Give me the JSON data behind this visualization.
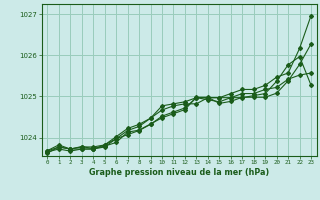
{
  "title": "Graphe pression niveau de la mer (hPa)",
  "background_color": "#cceae8",
  "grid_color": "#99ccbb",
  "line_color": "#1a5c1a",
  "ylim": [
    1023.55,
    1027.25
  ],
  "xlim": [
    -0.5,
    23.5
  ],
  "yticks": [
    1024,
    1025,
    1026,
    1027
  ],
  "xticks": [
    0,
    1,
    2,
    3,
    4,
    5,
    6,
    7,
    8,
    9,
    10,
    11,
    12,
    13,
    14,
    15,
    16,
    17,
    18,
    19,
    20,
    21,
    22,
    23
  ],
  "series": [
    [
      1023.68,
      1023.82,
      1023.72,
      1023.78,
      1023.73,
      1023.79,
      1023.88,
      1024.13,
      1024.18,
      1024.33,
      1024.48,
      1024.58,
      1024.68,
      1024.98,
      1024.98,
      1024.83,
      1024.88,
      1024.98,
      1024.98,
      1024.98,
      1025.08,
      1025.38,
      1025.78,
      1026.28
    ],
    [
      1023.65,
      1023.72,
      1023.67,
      1023.72,
      1023.72,
      1023.77,
      1023.97,
      1024.17,
      1024.27,
      1024.47,
      1024.67,
      1024.77,
      1024.82,
      1024.82,
      1024.97,
      1024.97,
      1025.07,
      1025.17,
      1025.17,
      1025.27,
      1025.47,
      1025.57,
      1026.17,
      1026.97
    ],
    [
      1023.67,
      1023.77,
      1023.72,
      1023.77,
      1023.77,
      1023.82,
      1024.02,
      1024.22,
      1024.32,
      1024.47,
      1024.77,
      1024.82,
      1024.87,
      1024.97,
      1024.97,
      1024.97,
      1024.97,
      1025.07,
      1025.07,
      1025.17,
      1025.22,
      1025.42,
      1025.52,
      1025.57
    ],
    [
      1023.62,
      1023.77,
      1023.72,
      1023.72,
      1023.72,
      1023.82,
      1023.97,
      1024.07,
      1024.17,
      1024.32,
      1024.52,
      1024.62,
      1024.72,
      1024.97,
      1024.92,
      1024.87,
      1024.97,
      1024.97,
      1025.02,
      1025.07,
      1025.37,
      1025.77,
      1025.97,
      1025.27
    ]
  ]
}
